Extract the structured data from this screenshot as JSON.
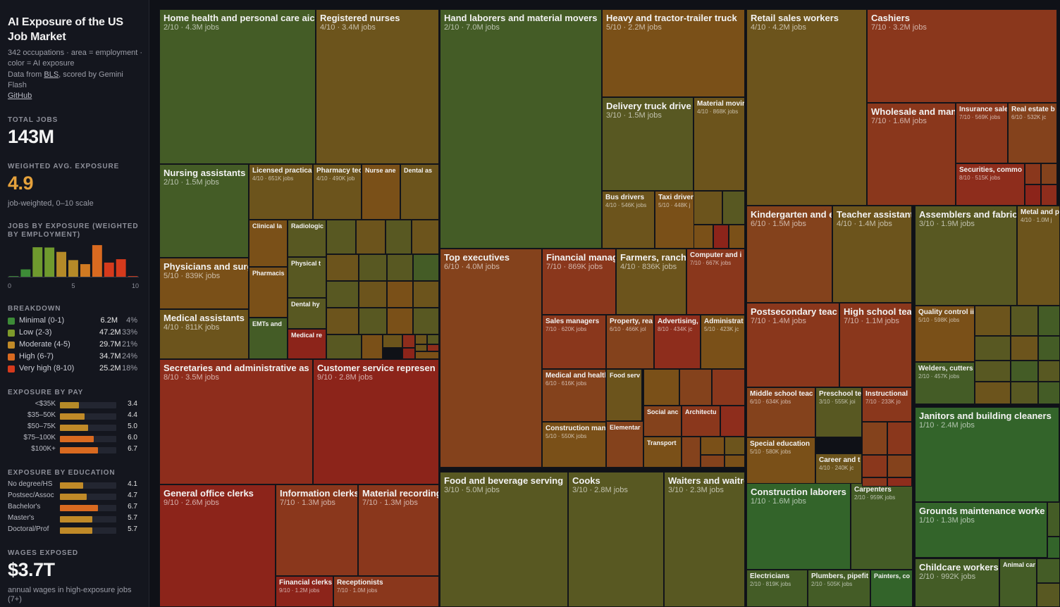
{
  "header": {
    "title": "AI Exposure of the US Job Market",
    "subtitle_line": "342 occupations · area = employment · color = AI exposure",
    "source_prefix": "Data from",
    "source_link": "BLS",
    "source_suffix": ", scored by Gemini Flash",
    "github_link": "GitHub"
  },
  "stats": {
    "total_jobs_label": "TOTAL JOBS",
    "total_jobs_value": "143M",
    "avg_label": "WEIGHTED AVG. EXPOSURE",
    "avg_value": "4.9",
    "avg_note": "job-weighted, 0–10 scale",
    "wages_label": "WAGES EXPOSED",
    "wages_value": "$3.7T",
    "wages_note": "annual wages in high-exposure jobs (7+)"
  },
  "histogram": {
    "label": "JOBS BY EXPOSURE (WEIGHTED BY EMPLOYMENT)",
    "ticks": [
      "0",
      "5",
      "10"
    ],
    "bins": [
      0,
      1,
      2,
      3,
      4,
      5,
      6,
      7,
      8,
      9,
      10
    ],
    "values": [
      0.2,
      2.4,
      9.6,
      9.5,
      8.1,
      5.4,
      4.1,
      10.3,
      4.6,
      5.7,
      0.2
    ]
  },
  "breakdown": {
    "label": "BREAKDOWN",
    "rows": [
      {
        "name": "Minimal (0-1)",
        "jobs": "6.2M",
        "pct": "4%",
        "color": "#3d8b37"
      },
      {
        "name": "Low (2-3)",
        "jobs": "47.2M",
        "pct": "33%",
        "color": "#7e9a2a"
      },
      {
        "name": "Moderate (4-5)",
        "jobs": "29.7M",
        "pct": "21%",
        "color": "#c08a28"
      },
      {
        "name": "High (6-7)",
        "jobs": "34.7M",
        "pct": "24%",
        "color": "#d96a20"
      },
      {
        "name": "Very high (8-10)",
        "jobs": "25.2M",
        "pct": "18%",
        "color": "#d63a1c"
      }
    ]
  },
  "pay": {
    "label": "EXPOSURE BY PAY",
    "rows": [
      {
        "name": "<$35K",
        "value": "3.4"
      },
      {
        "name": "$35–50K",
        "value": "4.4"
      },
      {
        "name": "$50–75K",
        "value": "5.0"
      },
      {
        "name": "$75–100K",
        "value": "6.0"
      },
      {
        "name": "$100K+",
        "value": "6.7"
      }
    ]
  },
  "education": {
    "label": "EXPOSURE BY EDUCATION",
    "rows": [
      {
        "name": "No degree/HS",
        "value": "4.1"
      },
      {
        "name": "Postsec/Assoc",
        "value": "4.7"
      },
      {
        "name": "Bachelor's",
        "value": "6.7"
      },
      {
        "name": "Master's",
        "value": "5.7"
      },
      {
        "name": "Doctoral/Prof",
        "value": "5.7"
      }
    ]
  },
  "chart_data": {
    "type": "treemap",
    "title": "AI Exposure of the US Job Market",
    "area": "employment",
    "color": "AI exposure (0–10)",
    "tiles": [
      {
        "name": "Home health and personal care aic",
        "score": 2,
        "sub": "2/10 · 4.3M jobs"
      },
      {
        "name": "Registered nurses",
        "score": 4,
        "sub": "4/10 · 3.4M jobs"
      },
      {
        "name": "Nursing assistants",
        "score": 2,
        "sub": "2/10 · 1.5M jobs"
      },
      {
        "name": "Licensed practical",
        "score": 4,
        "sub": "4/10 · 651K jobs"
      },
      {
        "name": "Pharmacy tec",
        "score": 4,
        "sub": "4/10 · 490K job"
      },
      {
        "name": "Nurse ane",
        "score": 5,
        "sub": ""
      },
      {
        "name": "Dental as",
        "score": 4,
        "sub": ""
      },
      {
        "name": "Clinical la",
        "score": 5,
        "sub": ""
      },
      {
        "name": "Radiologic",
        "score": 3,
        "sub": ""
      },
      {
        "name": "Physical t",
        "score": 3,
        "sub": ""
      },
      {
        "name": "Pharmacis",
        "score": 5,
        "sub": ""
      },
      {
        "name": "Dental hy",
        "score": 3,
        "sub": ""
      },
      {
        "name": "EMTs and",
        "score": 2,
        "sub": ""
      },
      {
        "name": "Medical re",
        "score": 9,
        "sub": ""
      },
      {
        "name": "Physicians and surg",
        "score": 5,
        "sub": "5/10 · 839K jobs"
      },
      {
        "name": "Medical assistants",
        "score": 4,
        "sub": "4/10 · 811K jobs"
      },
      {
        "name": "Secretaries and administrative as",
        "score": 8,
        "sub": "8/10 · 3.5M jobs"
      },
      {
        "name": "Customer service represen",
        "score": 9,
        "sub": "9/10 · 2.8M jobs"
      },
      {
        "name": "General office clerks",
        "score": 9,
        "sub": "9/10 · 2.6M jobs"
      },
      {
        "name": "Information clerks",
        "score": 7,
        "sub": "7/10 · 1.3M jobs"
      },
      {
        "name": "Material recording",
        "score": 7,
        "sub": "7/10 · 1.3M jobs"
      },
      {
        "name": "Financial clerks",
        "score": 9,
        "sub": "9/10 · 1.2M jobs"
      },
      {
        "name": "Receptionists",
        "score": 7,
        "sub": "7/10 · 1.0M jobs"
      },
      {
        "name": "Hand laborers and material movers",
        "score": 2,
        "sub": "2/10 · 7.0M jobs"
      },
      {
        "name": "Heavy and tractor-trailer truck",
        "score": 5,
        "sub": "5/10 · 2.2M jobs"
      },
      {
        "name": "Delivery truck drive",
        "score": 3,
        "sub": "3/10 · 1.5M jobs"
      },
      {
        "name": "Material movir",
        "score": 4,
        "sub": "4/10 · 868K jobs"
      },
      {
        "name": "Bus drivers",
        "score": 4,
        "sub": "4/10 · 546K jobs"
      },
      {
        "name": "Taxi drivers",
        "score": 5,
        "sub": "5/10 · 448K j"
      },
      {
        "name": "Top executives",
        "score": 6,
        "sub": "6/10 · 4.0M jobs"
      },
      {
        "name": "Financial managers",
        "score": 7,
        "sub": "7/10 · 869K jobs"
      },
      {
        "name": "Farmers, ranchers,",
        "score": 4,
        "sub": "4/10 · 836K jobs"
      },
      {
        "name": "Computer and i",
        "score": 7,
        "sub": "7/10 · 667K jobs"
      },
      {
        "name": "Sales managers",
        "score": 7,
        "sub": "7/10 · 620K jobs"
      },
      {
        "name": "Property, rea",
        "score": 6,
        "sub": "6/10 · 466K jol"
      },
      {
        "name": "Advertising,",
        "score": 8,
        "sub": "8/10 · 434K jc"
      },
      {
        "name": "Administrat",
        "score": 5,
        "sub": "5/10 · 423K jc"
      },
      {
        "name": "Medical and health",
        "score": 6,
        "sub": "6/10 · 616K jobs"
      },
      {
        "name": "Food serv",
        "score": 4,
        "sub": ""
      },
      {
        "name": "Social anc",
        "score": 6,
        "sub": ""
      },
      {
        "name": "Architectu",
        "score": 7,
        "sub": ""
      },
      {
        "name": "Construction man",
        "score": 5,
        "sub": "5/10 · 550K jobs"
      },
      {
        "name": "Elementar",
        "score": 6,
        "sub": ""
      },
      {
        "name": "Transport",
        "score": 5,
        "sub": ""
      },
      {
        "name": "Food and beverage serving",
        "score": 3,
        "sub": "3/10 · 5.0M jobs"
      },
      {
        "name": "Cooks",
        "score": 3,
        "sub": "3/10 · 2.8M jobs"
      },
      {
        "name": "Waiters and waitres",
        "score": 3,
        "sub": "3/10 · 2.3M jobs"
      },
      {
        "name": "Retail sales workers",
        "score": 4,
        "sub": "4/10 · 4.2M jobs"
      },
      {
        "name": "Cashiers",
        "score": 7,
        "sub": "7/10 · 3.2M jobs"
      },
      {
        "name": "Wholesale and man",
        "score": 7,
        "sub": "7/10 · 1.6M jobs"
      },
      {
        "name": "Insurance sale",
        "score": 7,
        "sub": "7/10 · 569K jobs"
      },
      {
        "name": "Real estate b",
        "score": 6,
        "sub": "6/10 · 532K jc"
      },
      {
        "name": "Securities, commo",
        "score": 8,
        "sub": "8/10 · 515K jobs"
      },
      {
        "name": "Kindergarten and e",
        "score": 6,
        "sub": "6/10 · 1.5M jobs"
      },
      {
        "name": "Teacher assistants",
        "score": 4,
        "sub": "4/10 · 1.4M jobs"
      },
      {
        "name": "Postsecondary teac",
        "score": 7,
        "sub": "7/10 · 1.4M jobs"
      },
      {
        "name": "High school teache",
        "score": 7,
        "sub": "7/10 · 1.1M jobs"
      },
      {
        "name": "Middle school teac",
        "score": 6,
        "sub": "6/10 · 634K jobs"
      },
      {
        "name": "Preschool te",
        "score": 3,
        "sub": "3/10 · 555K joi"
      },
      {
        "name": "Instructional",
        "score": 7,
        "sub": "7/10 · 233K jo"
      },
      {
        "name": "Special education",
        "score": 5,
        "sub": "5/10 · 580K jobs"
      },
      {
        "name": "Career and t",
        "score": 4,
        "sub": "4/10 · 240K jc"
      },
      {
        "name": "Assemblers and fabric",
        "score": 3,
        "sub": "3/10 · 1.9M jobs"
      },
      {
        "name": "Metal and pl",
        "score": 4,
        "sub": "4/10 · 1.0M j"
      },
      {
        "name": "Quality control ii",
        "score": 5,
        "sub": "5/10 · 598K jobs"
      },
      {
        "name": "Welders, cutters",
        "score": 2,
        "sub": "2/10 · 457K jobs"
      },
      {
        "name": "Janitors and building cleaners",
        "score": 1,
        "sub": "1/10 · 2.4M jobs"
      },
      {
        "name": "Grounds maintenance worke",
        "score": 1,
        "sub": "1/10 · 1.3M jobs"
      },
      {
        "name": "Childcare workers",
        "score": 2,
        "sub": "2/10 · 992K jobs"
      },
      {
        "name": "Animal car",
        "score": 2,
        "sub": ""
      },
      {
        "name": "Construction laborers",
        "score": 1,
        "sub": "1/10 · 1.6M jobs"
      },
      {
        "name": "Carpenters",
        "score": 2,
        "sub": "2/10 · 959K jobs"
      },
      {
        "name": "Electricians",
        "score": 2,
        "sub": "2/10 · 819K jobs"
      },
      {
        "name": "Plumbers, pipefit",
        "score": 2,
        "sub": "2/10 · 505K jobs"
      },
      {
        "name": "Painters, co",
        "score": 1,
        "sub": ""
      }
    ]
  }
}
